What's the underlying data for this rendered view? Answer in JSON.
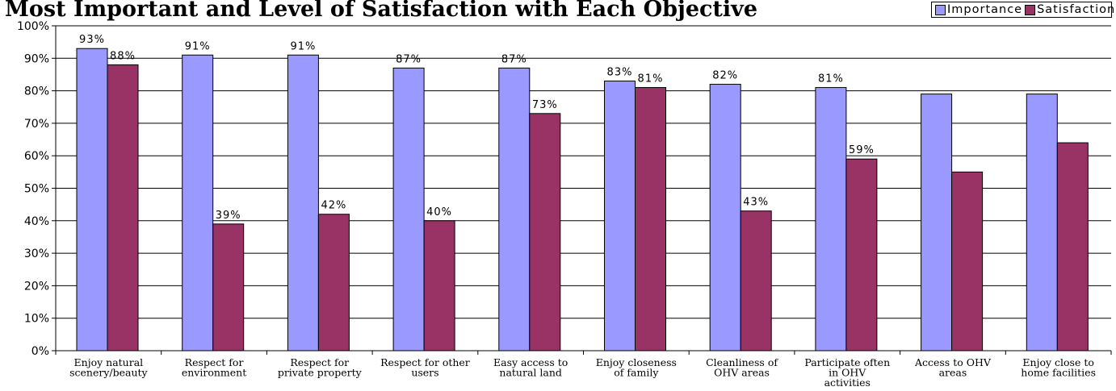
{
  "chart_data": {
    "type": "bar",
    "title": "Most Important and Level of Satisfaction with Each Objective",
    "categories": [
      [
        "Enjoy natural",
        "scenery/beauty"
      ],
      [
        "Respect for",
        "environment"
      ],
      [
        "Respect for",
        "private property"
      ],
      [
        "Respect for other",
        "users"
      ],
      [
        "Easy access to",
        "natural land"
      ],
      [
        "Enjoy closeness",
        "of family"
      ],
      [
        "Cleanliness of",
        "OHV areas"
      ],
      [
        "Participate often",
        "in OHV",
        "activities"
      ],
      [
        "Access to OHV",
        "areas"
      ],
      [
        "Enjoy close to",
        "home facilities"
      ]
    ],
    "series": [
      {
        "name": "Importance",
        "color": "#9999ff",
        "values": [
          93,
          91,
          91,
          87,
          87,
          83,
          82,
          81,
          79,
          79
        ],
        "labels": [
          "93%",
          "91%",
          "91%",
          "87%",
          "87%",
          "83%",
          "82%",
          "81%",
          "",
          ""
        ]
      },
      {
        "name": "Satisfaction",
        "color": "#993366",
        "values": [
          88,
          39,
          42,
          40,
          73,
          81,
          43,
          59,
          55,
          64
        ],
        "labels": [
          "88%",
          "39%",
          "42%",
          "40%",
          "73%",
          "81%",
          "43%",
          "59%",
          "",
          ""
        ]
      }
    ],
    "y_ticks": [
      "0%",
      "10%",
      "20%",
      "30%",
      "40%",
      "50%",
      "60%",
      "70%",
      "80%",
      "90%",
      "100%"
    ],
    "ylim": [
      0,
      100
    ],
    "grid": true,
    "legend_position": "top-right"
  }
}
